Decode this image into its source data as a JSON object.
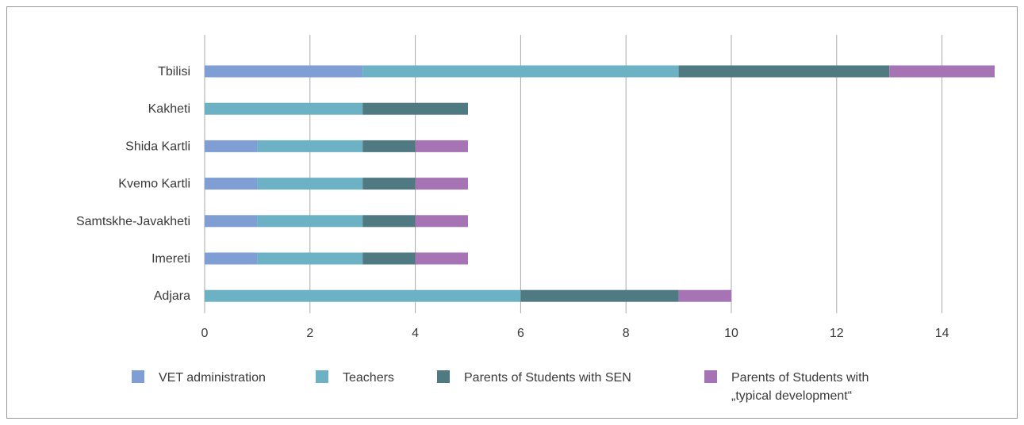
{
  "chart_data": {
    "type": "bar",
    "orientation": "horizontal",
    "stacked": true,
    "categories": [
      "Tbilisi",
      "Kakheti",
      "Shida Kartli",
      "Kvemo Kartli",
      "Samtskhe-Javakheti",
      "Imereti",
      "Adjara"
    ],
    "series": [
      {
        "name": "VET administration",
        "color": "#7f9fd4",
        "values": [
          3,
          0,
          1,
          1,
          1,
          1,
          0
        ]
      },
      {
        "name": "Teachers",
        "color": "#6cb2c4",
        "values": [
          6,
          3,
          2,
          2,
          2,
          2,
          6
        ]
      },
      {
        "name": "Parents of Students with SEN",
        "color": "#4f7a82",
        "values": [
          4,
          2,
          1,
          1,
          1,
          1,
          3
        ]
      },
      {
        "name": "Parents of Students with „typical development“",
        "color": "#a674b4",
        "values": [
          2,
          0,
          1,
          1,
          1,
          1,
          1
        ]
      }
    ],
    "legend_lines": [
      [
        "VET administration"
      ],
      [
        "Teachers"
      ],
      [
        "Parents of Students with SEN"
      ],
      [
        "Parents of Students with",
        "„typical development“"
      ]
    ],
    "xticks": [
      0,
      2,
      4,
      6,
      8,
      10,
      12,
      14
    ],
    "xlim": [
      0,
      15
    ],
    "grid": true,
    "legend_position": "bottom",
    "title": "",
    "xlabel": "",
    "ylabel": ""
  }
}
